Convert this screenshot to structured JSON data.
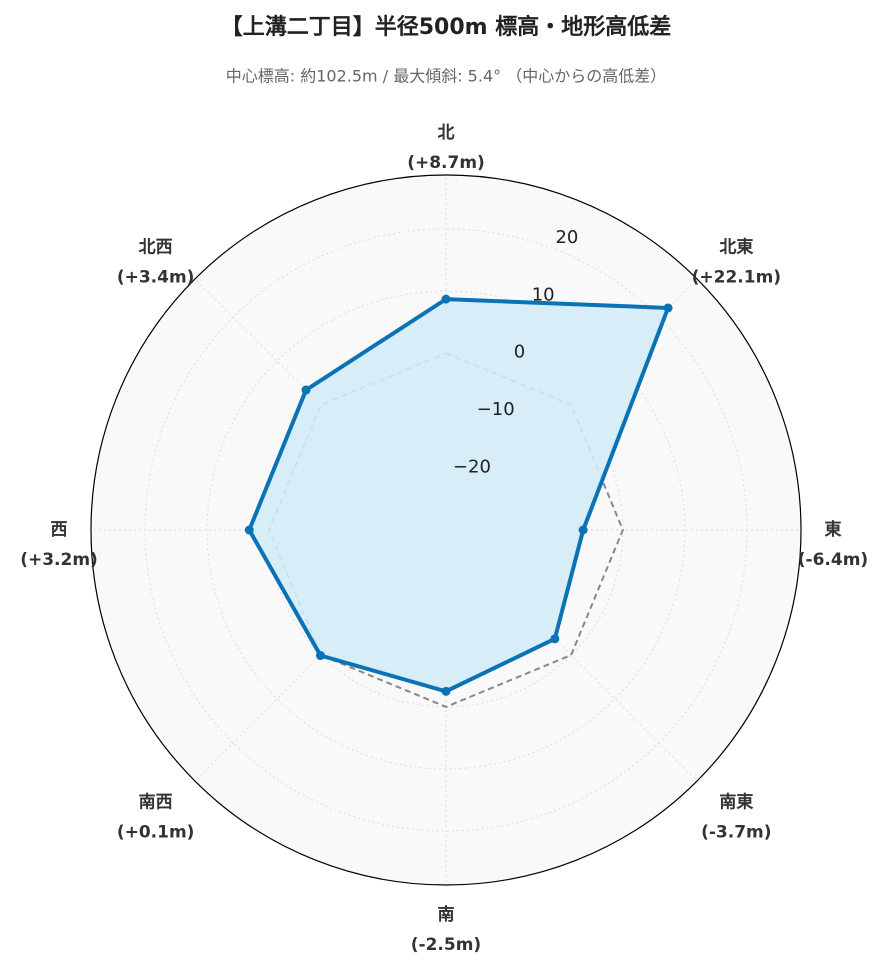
{
  "chart_data": {
    "type": "radar",
    "title": "【上溝二丁目】半径500m 標高・地形高低差",
    "subtitle": "中心標高: 約102.5m / 最大傾斜: 5.4° （中心からの高低差）",
    "categories": [
      "北",
      "北東",
      "東",
      "南東",
      "南",
      "南西",
      "西",
      "北西"
    ],
    "values": [
      8.7,
      22.1,
      -6.4,
      -3.7,
      -2.5,
      0.1,
      3.2,
      3.4
    ],
    "value_labels": [
      "(+8.7m)",
      "(+22.1m)",
      "(-6.4m)",
      "(-3.7m)",
      "(-2.5m)",
      "(+0.1m)",
      "(+3.2m)",
      "(+3.4m)"
    ],
    "color": "#0a72b5",
    "fill_color": "#d3ecf8",
    "ylim": [
      -28.5,
      28.7
    ],
    "yticks": [
      {
        "value": -20,
        "label": "−20"
      },
      {
        "value": -10,
        "label": "−10"
      },
      0,
      10,
      20
    ],
    "reference_line": {
      "value": 0,
      "color": "#888888"
    },
    "grid": true
  }
}
